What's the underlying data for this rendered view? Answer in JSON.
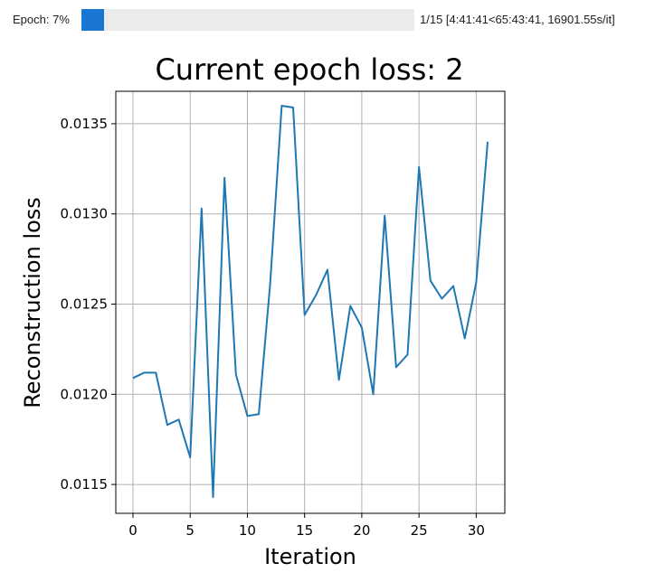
{
  "progress": {
    "label": "Epoch: 7%",
    "fraction": 0.0667,
    "status": "1/15 [4:41:41<65:43:41, 16901.55s/it]",
    "fill_color": "#1976d2",
    "track_color": "#ebebeb"
  },
  "chart_data": {
    "type": "line",
    "title": "Current epoch loss: 2",
    "xlabel": "Iteration",
    "ylabel": "Reconstruction loss",
    "xlim": [
      -1.5,
      32.5
    ],
    "ylim": [
      0.01134,
      0.01368
    ],
    "xticks": [
      0,
      5,
      10,
      15,
      20,
      25,
      30
    ],
    "xtick_labels": [
      "0",
      "5",
      "10",
      "15",
      "20",
      "25",
      "30"
    ],
    "yticks": [
      0.0115,
      0.012,
      0.0125,
      0.013,
      0.0135
    ],
    "ytick_labels": [
      "0.0115",
      "0.0120",
      "0.0125",
      "0.0130",
      "0.0135"
    ],
    "grid": true,
    "line_color": "#1f77b4",
    "series": [
      {
        "x": [
          0,
          1,
          2,
          3,
          4,
          5,
          6,
          7,
          8,
          9,
          10,
          11,
          12,
          13,
          14,
          15,
          16,
          17,
          18,
          19,
          20,
          21,
          22,
          23,
          24,
          25,
          26,
          27,
          28,
          29,
          30,
          31
        ],
        "y": [
          0.01209,
          0.01212,
          0.01212,
          0.01183,
          0.01186,
          0.01165,
          0.01303,
          0.01143,
          0.0132,
          0.01211,
          0.01188,
          0.01189,
          0.01262,
          0.0136,
          0.01359,
          0.01244,
          0.01255,
          0.01269,
          0.01208,
          0.01249,
          0.01237,
          0.012,
          0.01299,
          0.01215,
          0.01222,
          0.01326,
          0.01263,
          0.01253,
          0.0126,
          0.01231,
          0.01262,
          0.0134
        ]
      }
    ]
  }
}
